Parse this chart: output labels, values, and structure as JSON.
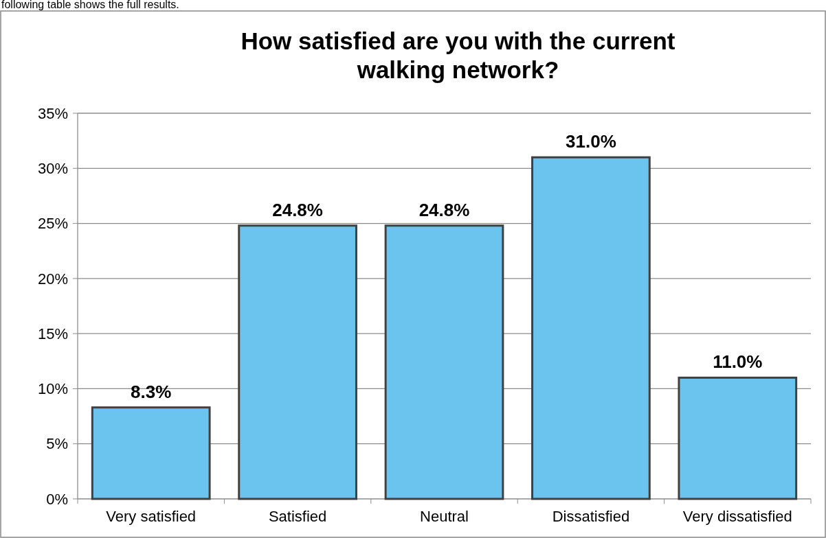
{
  "chart_data": {
    "type": "bar",
    "title": "How satisfied are you with the current walking network?",
    "annotations": [
      "following table shows the full results."
    ],
    "categories": [
      "Very satisfied",
      "Satisfied",
      "Neutral",
      "Dissatisfied",
      "Very dissatisfied"
    ],
    "values": [
      8.3,
      24.8,
      24.8,
      31.0,
      11.0
    ],
    "value_labels": [
      "8.3%",
      "24.8%",
      "24.8%",
      "31.0%",
      "11.0%"
    ],
    "color": "#6ac4ee",
    "ylim": [
      0,
      35
    ],
    "yticks": [
      {
        "value": 0,
        "label": "0%"
      },
      {
        "value": 5,
        "label": "5%"
      },
      {
        "value": 10,
        "label": "10%"
      },
      {
        "value": 15,
        "label": "15%"
      },
      {
        "value": 20,
        "label": "20%"
      },
      {
        "value": 25,
        "label": "25%"
      },
      {
        "value": 30,
        "label": "30%"
      },
      {
        "value": 35,
        "label": "35%"
      }
    ],
    "grid": "y"
  }
}
